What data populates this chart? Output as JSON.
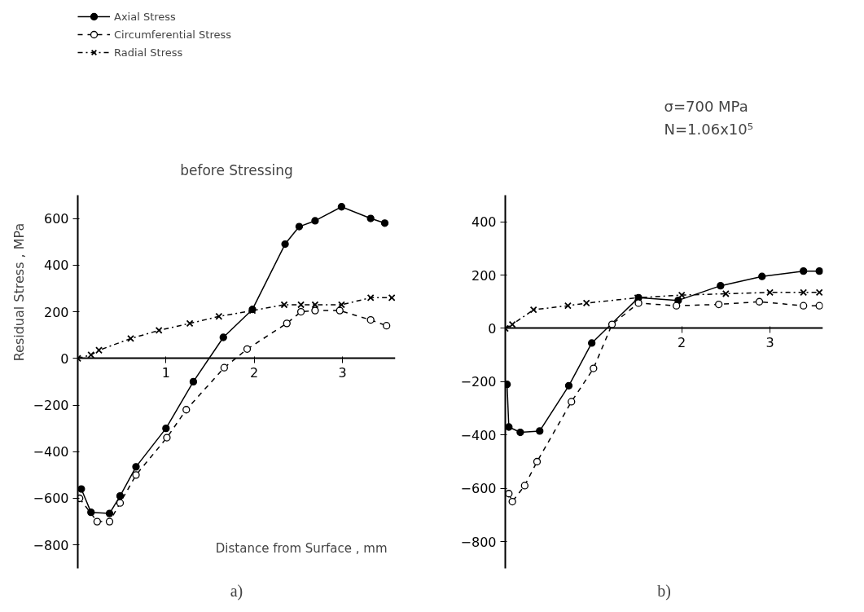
{
  "chart_data": [
    {
      "type": "line",
      "title": "before Stressing",
      "xlabel": "Distance from Surface , mm",
      "ylabel": "Residual Stress , MPa",
      "annotations": [
        "a)"
      ],
      "legend": "top left",
      "grid": false,
      "xlim": [
        0,
        3.6
      ],
      "ylim": [
        -900,
        700
      ],
      "xticks": [
        1,
        2,
        3
      ],
      "yticks": [
        -800,
        -600,
        -400,
        -200,
        0,
        200,
        400,
        600
      ],
      "series": [
        {
          "name": "Axial Stress",
          "color": "#000000",
          "marker": "circle",
          "line_style": "solid",
          "x": [
            0.04,
            0.15,
            0.36,
            0.48,
            0.66,
            1.0,
            1.31,
            1.65,
            1.98,
            2.35,
            2.51,
            2.69,
            2.99,
            3.32,
            3.48
          ],
          "values": [
            -560,
            -660,
            -665,
            -590,
            -465,
            -300,
            -100,
            90,
            210,
            490,
            565,
            590,
            650,
            600,
            580
          ]
        },
        {
          "name": "Circumferential Stress",
          "color": "#000000",
          "marker": "circle",
          "line_style": "dashed",
          "x": [
            0.02,
            0.22,
            0.36,
            0.48,
            0.66,
            1.01,
            1.23,
            1.66,
            1.92,
            2.37,
            2.53,
            2.69,
            2.97,
            3.32,
            3.5
          ],
          "values": [
            -600,
            -700,
            -700,
            -620,
            -500,
            -340,
            -220,
            -40,
            40,
            150,
            200,
            205,
            205,
            165,
            140
          ]
        },
        {
          "name": "Radial Stress",
          "color": "#000000",
          "marker": "cross",
          "line_style": "dashdot",
          "x": [
            0,
            0.15,
            0.24,
            0.6,
            0.92,
            1.27,
            1.6,
            1.98,
            2.34,
            2.53,
            2.69,
            2.99,
            3.32,
            3.56
          ],
          "values": [
            0,
            15,
            35,
            85,
            120,
            150,
            180,
            205,
            230,
            230,
            230,
            230,
            260,
            260
          ]
        }
      ]
    },
    {
      "type": "line",
      "annotations": [
        "σ=700 MPa",
        "N=1.06x10⁵",
        "b)"
      ],
      "grid": false,
      "xlim": [
        0,
        3.6
      ],
      "ylim": [
        -900,
        500
      ],
      "xticks": [
        2,
        3
      ],
      "yticks": [
        -800,
        -600,
        -400,
        -200,
        0,
        200,
        400
      ],
      "series": [
        {
          "color": "#000000",
          "marker": "circle",
          "line_style": "solid",
          "x": [
            0.02,
            0.04,
            0.17,
            0.39,
            0.72,
            0.98,
            1.51,
            1.96,
            2.44,
            2.91,
            3.38,
            3.56
          ],
          "values": [
            -210,
            -370,
            -390,
            -385,
            -215,
            -55,
            115,
            105,
            160,
            195,
            215,
            215
          ]
        },
        {
          "color": "#000000",
          "marker": "circle",
          "line_style": "dashed",
          "x": [
            0.04,
            0.08,
            0.22,
            0.36,
            0.75,
            1.0,
            1.21,
            1.51,
            1.94,
            2.42,
            2.88,
            3.38,
            3.56
          ],
          "values": [
            -620,
            -650,
            -590,
            -500,
            -275,
            -150,
            15,
            95,
            85,
            90,
            100,
            85,
            85
          ]
        },
        {
          "color": "#000000",
          "marker": "cross",
          "line_style": "dashdot",
          "x": [
            0,
            0.08,
            0.32,
            0.71,
            0.92,
            1.5,
            2.0,
            2.5,
            3.0,
            3.38,
            3.56
          ],
          "values": [
            0,
            15,
            70,
            85,
            95,
            115,
            125,
            130,
            135,
            135,
            135
          ]
        }
      ]
    }
  ]
}
